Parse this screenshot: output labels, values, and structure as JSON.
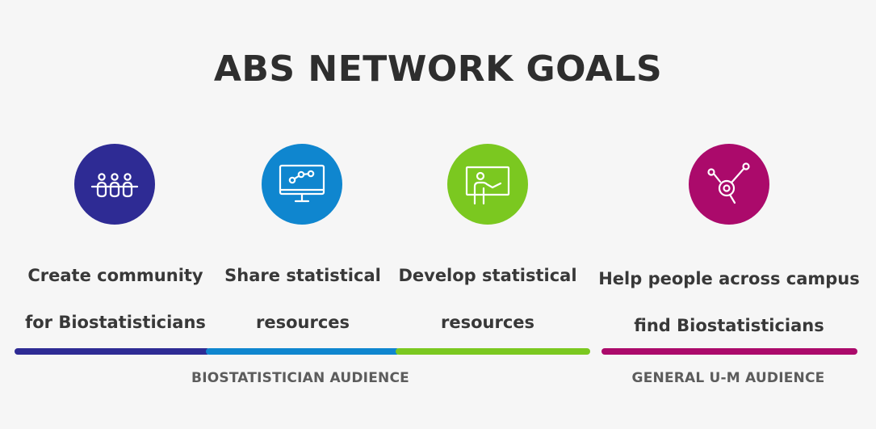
{
  "title": "ABS NETWORK GOALS",
  "colors": {
    "navy": "#2e2b94",
    "blue": "#0f86cf",
    "green": "#7bc820",
    "magenta": "#ab0a6b",
    "text": "#383838",
    "audience_text": "#5c5c5c"
  },
  "goals": [
    {
      "icon": "community-people-icon",
      "line1": "Create community",
      "line2": "for Biostatisticians"
    },
    {
      "icon": "monitor-chart-icon",
      "line1": "Share statistical",
      "line2": "resources"
    },
    {
      "icon": "presenter-board-icon",
      "line1": "Develop statistical",
      "line2": "resources"
    },
    {
      "icon": "magnifier-network-icon",
      "line1": "Help people across campus",
      "line2": "find Biostatisticians"
    }
  ],
  "audiences": {
    "biostatistician": "BIOSTATISTICIAN AUDIENCE",
    "general": "GENERAL U-M AUDIENCE"
  }
}
